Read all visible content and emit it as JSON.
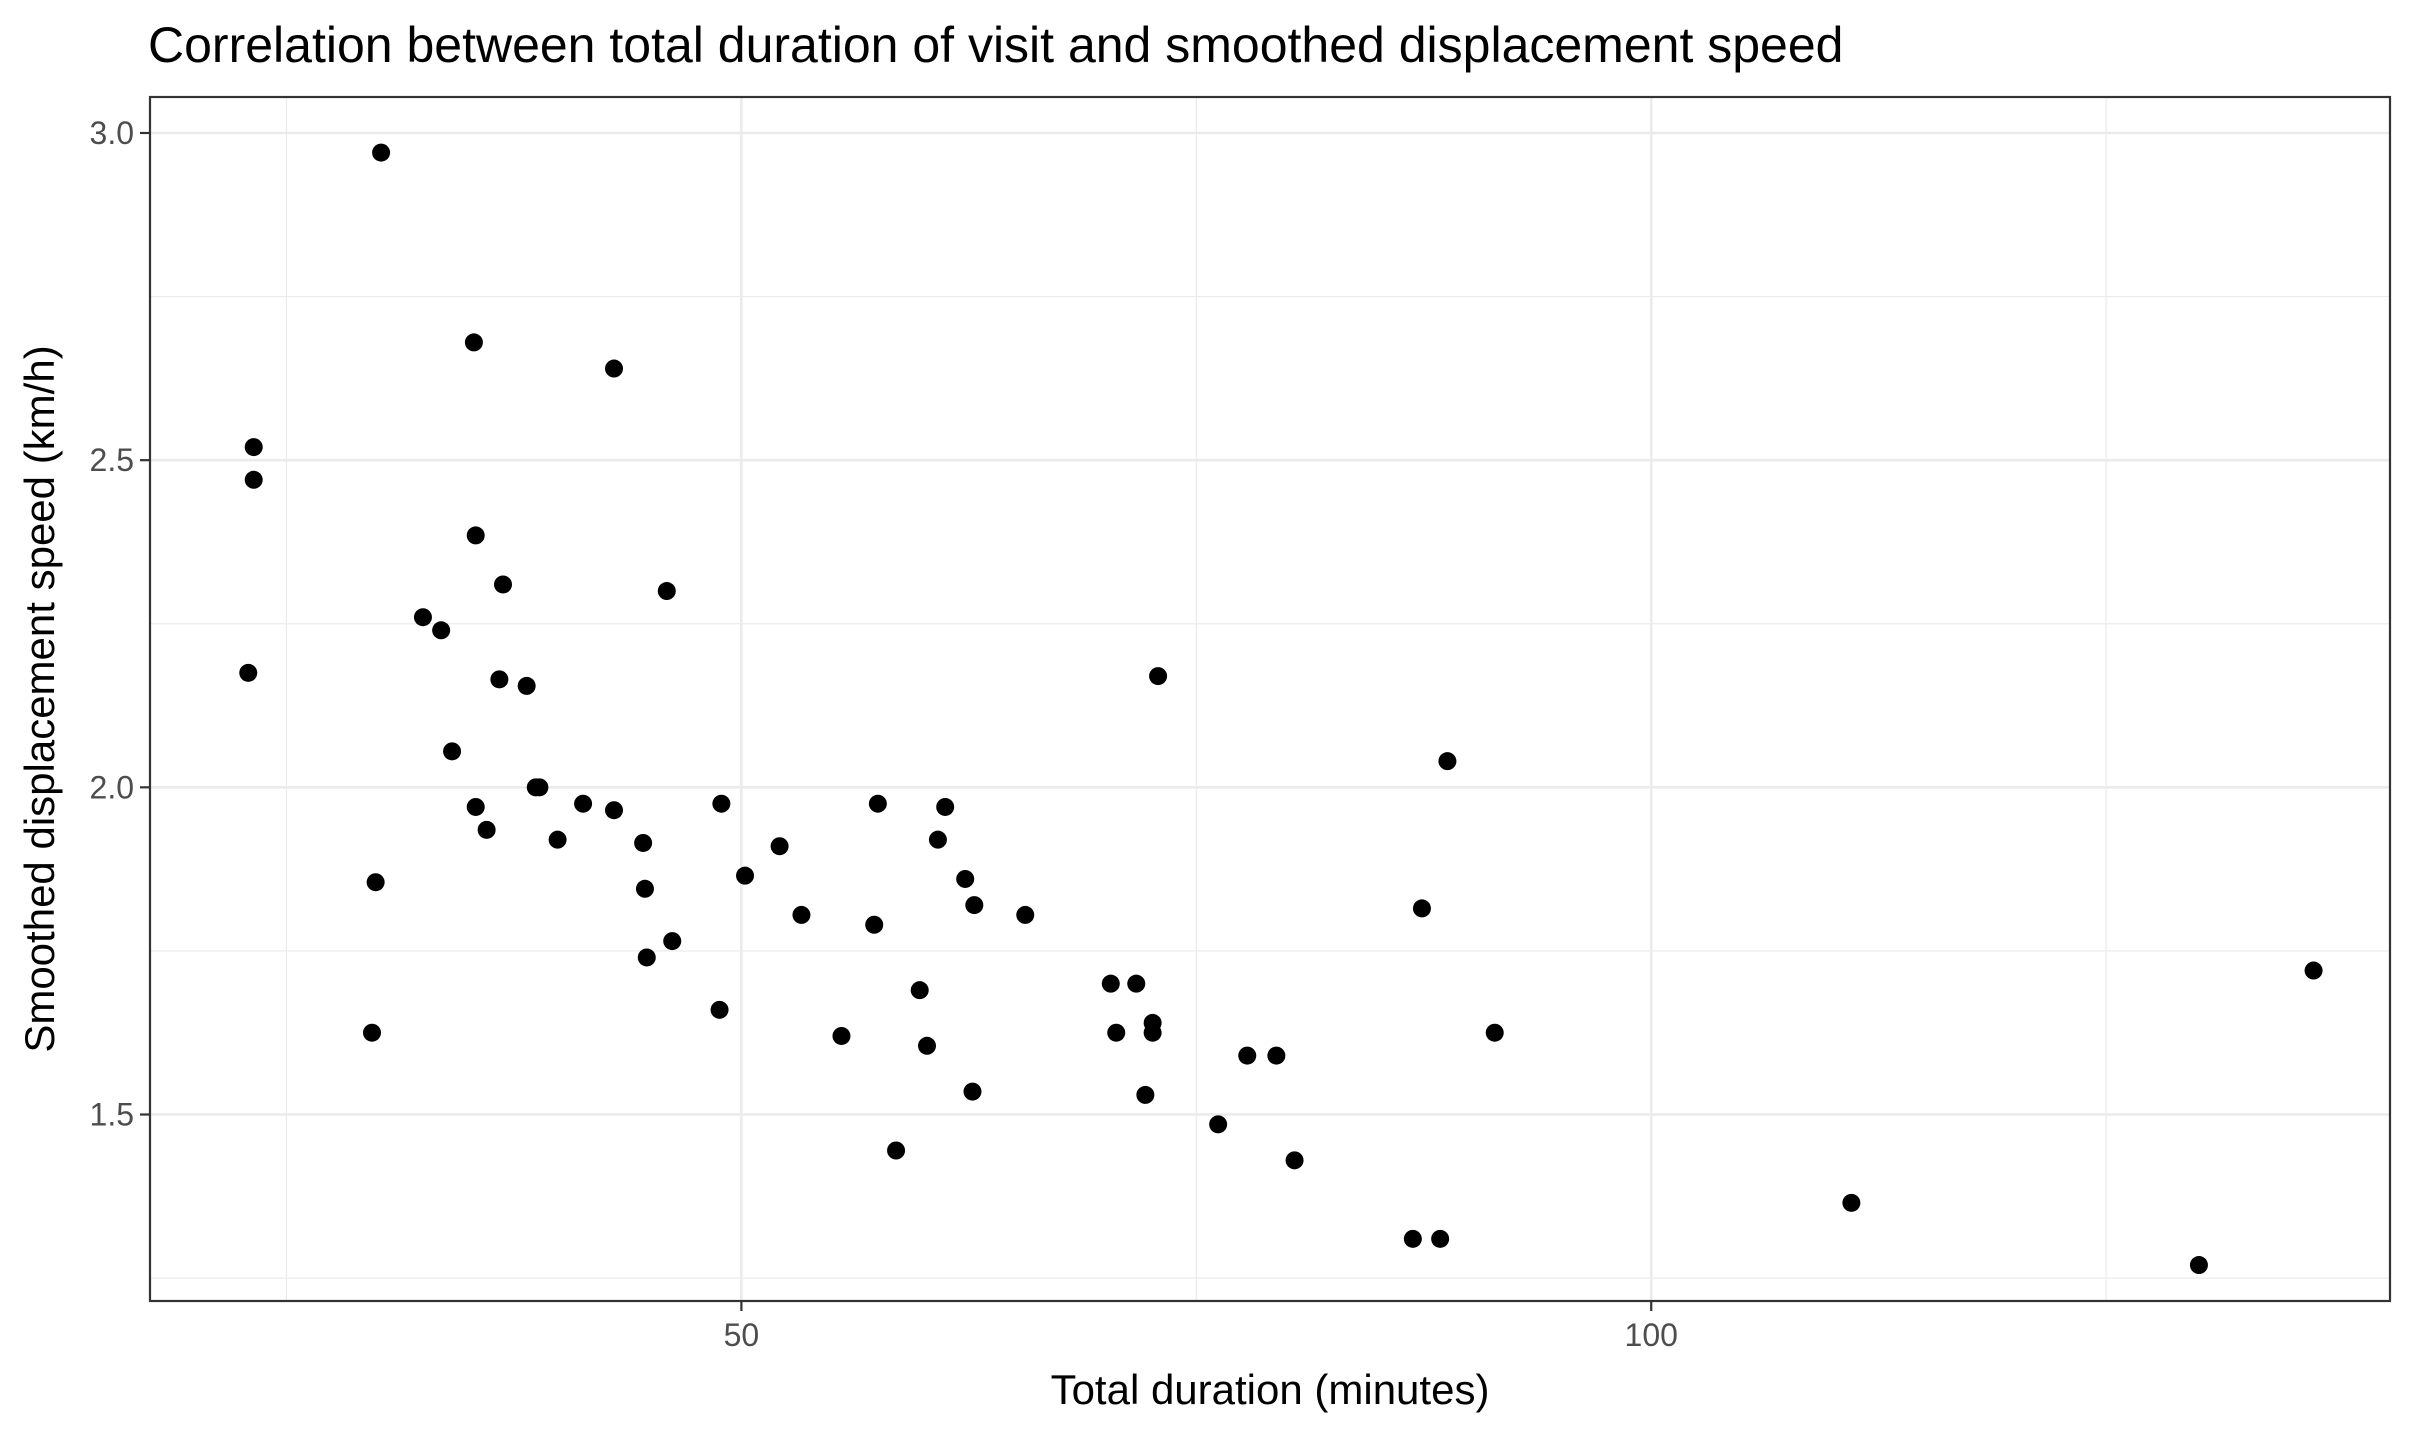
{
  "chart_data": {
    "type": "scatter",
    "title": "Correlation between total duration of visit and smoothed displacement speed",
    "xlabel": "Total duration (minutes)",
    "ylabel": "Smoothed displacement speed (km/h)",
    "xlim": [
      17.5,
      140.6
    ],
    "ylim": [
      1.215,
      3.055
    ],
    "x_ticks": [
      50,
      100
    ],
    "x_tick_labels": [
      "50",
      "100"
    ],
    "x_minor_ticks": [
      25,
      75,
      125
    ],
    "y_ticks": [
      1.5,
      2.0,
      2.5,
      3.0
    ],
    "y_tick_labels": [
      "1.5",
      "2.0",
      "2.5",
      "3.0"
    ],
    "y_minor_ticks": [
      1.25,
      1.75,
      2.25,
      2.75
    ],
    "grid": true,
    "point_color": "#000000",
    "x": [
      30.2,
      23.2,
      23.2,
      22.9,
      35.3,
      43.0,
      35.4,
      36.9,
      45.9,
      32.5,
      33.5,
      36.7,
      38.2,
      34.1,
      38.7,
      38.9,
      35.4,
      41.3,
      43.0,
      48.9,
      44.6,
      52.1,
      57.5,
      61.2,
      39.9,
      60.8,
      36.0,
      29.9,
      50.2,
      44.7,
      62.3,
      53.3,
      62.8,
      65.6,
      57.3,
      46.2,
      44.8,
      70.3,
      71.7,
      59.8,
      48.8,
      72.6,
      70.6,
      72.6,
      55.5,
      60.2,
      77.8,
      79.4,
      29.7,
      72.2,
      62.7,
      76.2,
      58.5,
      80.4,
      111.0,
      86.9,
      88.4,
      88.8,
      87.4,
      91.4,
      136.4,
      130.1,
      72.9
    ],
    "y": [
      2.97,
      2.52,
      2.47,
      2.175,
      2.68,
      2.64,
      2.385,
      2.31,
      2.3,
      2.26,
      2.24,
      2.165,
      2.155,
      2.055,
      2.0,
      2.0,
      1.97,
      1.975,
      1.965,
      1.975,
      1.915,
      1.91,
      1.975,
      1.97,
      1.92,
      1.92,
      1.935,
      1.855,
      1.865,
      1.845,
      1.86,
      1.805,
      1.82,
      1.805,
      1.79,
      1.765,
      1.74,
      1.7,
      1.7,
      1.69,
      1.66,
      1.64,
      1.625,
      1.625,
      1.62,
      1.605,
      1.59,
      1.59,
      1.625,
      1.53,
      1.535,
      1.485,
      1.445,
      1.43,
      1.365,
      1.31,
      1.31,
      2.04,
      1.815,
      1.625,
      1.72,
      1.27,
      2.17
    ]
  }
}
